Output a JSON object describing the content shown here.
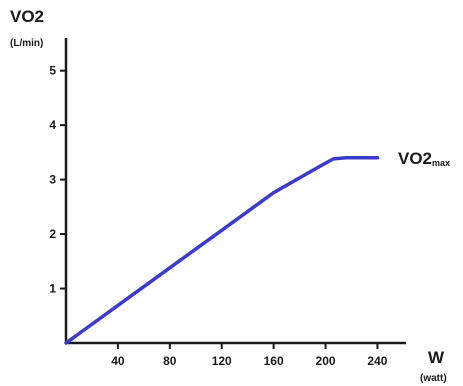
{
  "chart_data": {
    "type": "line",
    "xlabel": "W",
    "xunit": "(watt)",
    "ylabel": "VO2",
    "yunit": "(L/min)",
    "xlim": [
      0,
      262
    ],
    "ylim": [
      0,
      5.6
    ],
    "xticks": [
      "40",
      "80",
      "120",
      "160",
      "200",
      "240"
    ],
    "yticks": [
      "1",
      "2",
      "3",
      "4",
      "5"
    ],
    "grid": false,
    "series": [
      {
        "color": "#3a3acd",
        "x": [
          0,
          40,
          80,
          120,
          160,
          196,
          206,
          216,
          240
        ],
        "y": [
          0,
          0.69,
          1.38,
          2.07,
          2.76,
          3.25,
          3.38,
          3.4,
          3.4
        ]
      }
    ],
    "annotation": {
      "text": "VO2",
      "subscript": "max"
    }
  }
}
